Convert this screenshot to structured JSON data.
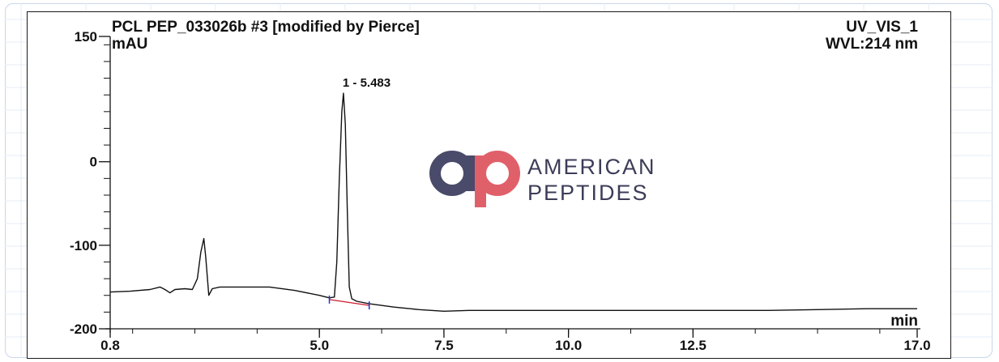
{
  "header": {
    "title": "PCL PEP_033026b #3 [modified by Pierce]",
    "channel": "UV_VIS_1",
    "wavelength": "WVL:214 nm",
    "y_unit": "mAU",
    "x_unit": "min"
  },
  "watermark": {
    "brand_line1": "AMERICAN",
    "brand_line2": "PEPTIDES",
    "logo_colors": {
      "a": "#4a4a6a",
      "p": "#e0606a"
    }
  },
  "chart_data": {
    "type": "line",
    "title": "PCL PEP_033026b #3 [modified by Pierce]",
    "xlabel": "min",
    "ylabel": "mAU",
    "xlim": [
      0.8,
      17.0
    ],
    "ylim": [
      -200,
      150
    ],
    "x_ticks": [
      0.8,
      5.0,
      7.5,
      10.0,
      12.5,
      17.0
    ],
    "x_tick_labels": [
      "0.8",
      "5.0",
      "7.5",
      "10.0",
      "12.5",
      "17.0"
    ],
    "y_ticks": [
      150,
      0,
      -100,
      -200
    ],
    "y_tick_labels": [
      "150",
      "0",
      "-100",
      "-200"
    ],
    "grid": false,
    "series": [
      {
        "color": "#111111",
        "x": [
          0.8,
          1.2,
          1.6,
          1.8,
          1.9,
          2.0,
          2.1,
          2.3,
          2.45,
          2.55,
          2.62,
          2.68,
          2.72,
          2.78,
          2.85,
          3.0,
          3.5,
          4.0,
          4.5,
          5.0,
          5.2,
          5.3,
          5.35,
          5.4,
          5.45,
          5.483,
          5.52,
          5.56,
          5.6,
          5.65,
          5.75,
          6.0,
          6.5,
          7.0,
          7.5,
          8.0,
          9.0,
          10.0,
          11.0,
          12.0,
          13.0,
          14.0,
          15.0,
          16.0,
          17.0
        ],
        "y": [
          -156,
          -155,
          -153,
          -150,
          -153,
          -157,
          -153,
          -152,
          -153,
          -140,
          -108,
          -92,
          -115,
          -160,
          -152,
          -150,
          -150,
          -150,
          -154,
          -160,
          -163,
          -162,
          -120,
          -20,
          60,
          82,
          45,
          -60,
          -150,
          -164,
          -167,
          -170,
          -174,
          -177,
          -179,
          -178,
          -178,
          -178,
          -178,
          -178,
          -178,
          -178,
          -177,
          -176,
          -176
        ]
      }
    ],
    "peaks": [
      {
        "label": "1 - 5.483",
        "rt": 5.483,
        "height": 82
      }
    ],
    "baseline": {
      "color": "#d0192a",
      "x": [
        5.2,
        6.0
      ],
      "y": [
        -165,
        -172
      ]
    },
    "integration_marks": {
      "color": "#1f35c8",
      "x": [
        5.2,
        6.0
      ]
    }
  }
}
